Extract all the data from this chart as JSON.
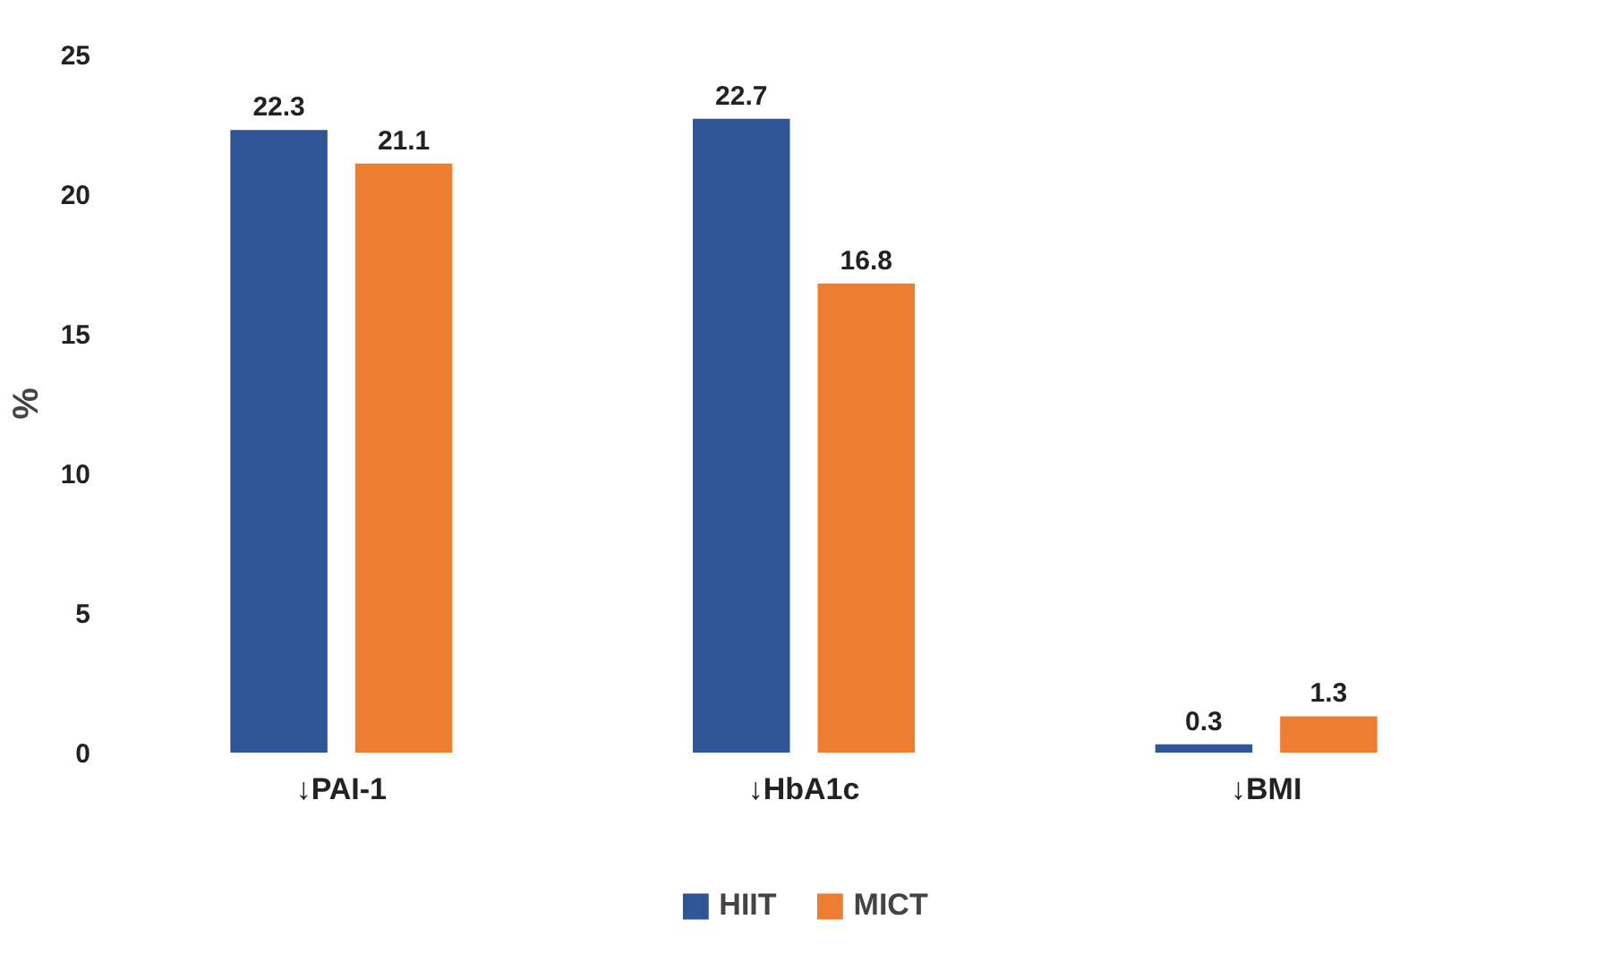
{
  "chart_data": {
    "type": "bar",
    "categories": [
      "↓PAI-1",
      "↓HbA1c",
      "↓BMI"
    ],
    "ylabel": "%",
    "ylim": [
      0,
      25
    ],
    "yticks": [
      0,
      5,
      10,
      15,
      20,
      25
    ],
    "grid": false,
    "legend": "bottom",
    "data_labels": true,
    "series": [
      {
        "name": "HIIT",
        "color": "#2f5597",
        "values": [
          22.3,
          22.7,
          0.3
        ]
      },
      {
        "name": "MICT",
        "color": "#ed7d31",
        "values": [
          21.1,
          16.8,
          1.3
        ]
      }
    ]
  }
}
